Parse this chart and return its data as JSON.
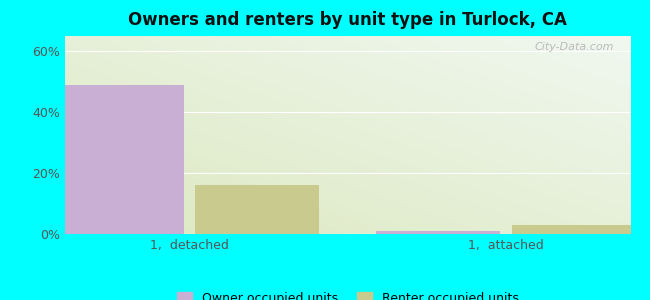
{
  "title": "Owners and renters by unit type in Turlock, CA",
  "categories": [
    "1,  detached",
    "1,  attached"
  ],
  "owner_values": [
    49,
    1
  ],
  "renter_values": [
    16,
    3
  ],
  "owner_color": "#c9afd4",
  "renter_color": "#c8ca8e",
  "outer_background": "#00ffff",
  "ylim": [
    0,
    65
  ],
  "yticks": [
    0,
    20,
    40,
    60
  ],
  "ytick_labels": [
    "0%",
    "20%",
    "40%",
    "60%"
  ],
  "legend_owner": "Owner occupied units",
  "legend_renter": "Renter occupied units",
  "bar_width": 0.22,
  "group_positions": [
    0.22,
    0.78
  ],
  "watermark": "City-Data.com"
}
